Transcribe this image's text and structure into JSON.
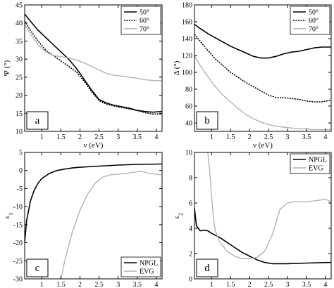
{
  "chart_data": [
    {
      "type": "line",
      "panel_label": "a",
      "xlabel": "ν (eV)",
      "ylabel": "Ψ (°)",
      "xlim": [
        0.55,
        4.15
      ],
      "ylim": [
        10,
        45
      ],
      "xticks": [
        1,
        1.5,
        2,
        2.5,
        3,
        3.5,
        4
      ],
      "xtick_labels": [
        "1",
        "1.5",
        "2",
        "2.5",
        "3",
        "3.5",
        "4"
      ],
      "yticks": [
        10,
        15,
        20,
        25,
        30,
        35,
        40,
        45
      ],
      "ytick_labels": [
        "10",
        "15",
        "20",
        "25",
        "30",
        "35",
        "40",
        "45"
      ],
      "grid": false,
      "legend_position": "top-right",
      "series": [
        {
          "name": "50°",
          "color": "#000000",
          "dash": "solid",
          "x": [
            0.55,
            0.7,
            0.9,
            1.1,
            1.3,
            1.5,
            1.7,
            1.9,
            2.1,
            2.3,
            2.5,
            2.7,
            2.9,
            3.1,
            3.3,
            3.5,
            3.7,
            3.9,
            4.15
          ],
          "y": [
            42.5,
            40.5,
            38.0,
            36.0,
            34.0,
            32.0,
            30.0,
            27.5,
            24.5,
            21.5,
            18.8,
            17.8,
            17.2,
            16.8,
            16.4,
            15.8,
            15.5,
            15.3,
            15.5
          ]
        },
        {
          "name": "60°",
          "color": "#000000",
          "dash": "dotted",
          "x": [
            0.55,
            0.7,
            0.9,
            1.1,
            1.3,
            1.5,
            1.7,
            1.9,
            2.1,
            2.3,
            2.5,
            2.7,
            2.9,
            3.1,
            3.3,
            3.5,
            3.7,
            3.9,
            4.15
          ],
          "y": [
            40.5,
            38.0,
            35.0,
            32.5,
            31.0,
            29.5,
            28.0,
            26.5,
            24.0,
            21.0,
            18.5,
            17.5,
            17.0,
            16.6,
            16.2,
            15.8,
            15.2,
            14.8,
            14.8
          ]
        },
        {
          "name": "70°",
          "color": "#b3b3b3",
          "dash": "solid",
          "x": [
            0.55,
            0.7,
            0.9,
            1.1,
            1.3,
            1.5,
            1.7,
            1.9,
            2.1,
            2.3,
            2.5,
            2.7,
            2.9,
            3.1,
            3.3,
            3.5,
            3.7,
            3.9,
            4.15
          ],
          "y": [
            39.5,
            37.0,
            34.0,
            32.0,
            31.0,
            30.7,
            30.3,
            29.8,
            29.0,
            28.0,
            27.0,
            26.0,
            25.5,
            25.3,
            25.0,
            24.7,
            24.3,
            24.1,
            24.0
          ]
        }
      ]
    },
    {
      "type": "line",
      "panel_label": "b",
      "xlabel": "ν (eV)",
      "ylabel": "Δ (°)",
      "xlim": [
        0.55,
        4.15
      ],
      "ylim": [
        30,
        180
      ],
      "xticks": [
        1,
        1.5,
        2,
        2.5,
        3,
        3.5,
        4
      ],
      "xtick_labels": [
        "1",
        "1.5",
        "2",
        "2.5",
        "3",
        "3.5",
        "4"
      ],
      "yticks": [
        40,
        60,
        80,
        100,
        120,
        140,
        160,
        180
      ],
      "ytick_labels": [
        "40",
        "60",
        "80",
        "100",
        "120",
        "140",
        "160",
        "180"
      ],
      "grid": false,
      "legend_position": "top-right",
      "series": [
        {
          "name": "50°",
          "color": "#000000",
          "dash": "solid",
          "x": [
            0.55,
            0.7,
            0.9,
            1.1,
            1.3,
            1.5,
            1.7,
            1.9,
            2.1,
            2.3,
            2.5,
            2.7,
            2.9,
            3.1,
            3.3,
            3.5,
            3.7,
            3.9,
            4.15
          ],
          "y": [
            157,
            152,
            146,
            141,
            136,
            131,
            127,
            123,
            119,
            117,
            117,
            119,
            122,
            124,
            125,
            127,
            129,
            130,
            130
          ]
        },
        {
          "name": "60°",
          "color": "#000000",
          "dash": "dotted",
          "x": [
            0.55,
            0.7,
            0.9,
            1.1,
            1.3,
            1.5,
            1.7,
            1.9,
            2.1,
            2.3,
            2.5,
            2.7,
            2.9,
            3.1,
            3.3,
            3.5,
            3.7,
            3.9,
            4.15
          ],
          "y": [
            145,
            137,
            126,
            116,
            108,
            100,
            94,
            88,
            83,
            78,
            73,
            70,
            70,
            69,
            68,
            66,
            65,
            65,
            67
          ]
        },
        {
          "name": "70°",
          "color": "#b3b3b3",
          "dash": "solid",
          "x": [
            0.55,
            0.7,
            0.9,
            1.1,
            1.3,
            1.5,
            1.7,
            1.9,
            2.1,
            2.3,
            2.5,
            2.7,
            2.9,
            3.1,
            3.3,
            3.5,
            3.7,
            3.9,
            4.15
          ],
          "y": [
            120,
            108,
            95,
            83,
            73,
            65,
            57,
            50,
            45,
            41,
            38,
            36,
            35,
            34,
            33,
            33,
            32,
            32,
            32
          ]
        }
      ]
    },
    {
      "type": "line",
      "panel_label": "c",
      "xlabel": "",
      "ylabel": "ε1",
      "xlim": [
        0.55,
        4.15
      ],
      "ylim": [
        -30,
        5
      ],
      "xticks": [
        1,
        1.5,
        2,
        2.5,
        3,
        3.5,
        4
      ],
      "xtick_labels": [
        "1",
        "1.5",
        "2",
        "2.5",
        "3",
        "3.5",
        "4"
      ],
      "yticks": [
        -30,
        -25,
        -20,
        -15,
        -10,
        -5,
        0,
        5
      ],
      "ytick_labels": [
        "-30",
        "-25",
        "-20",
        "-15",
        "-10",
        "-5",
        "0",
        "5"
      ],
      "grid": false,
      "legend_position": "bottom-right",
      "series": [
        {
          "name": "NPGL",
          "color": "#000000",
          "dash": "solid",
          "x": [
            0.55,
            0.6,
            0.7,
            0.8,
            0.9,
            1.0,
            1.2,
            1.4,
            1.6,
            1.8,
            2.0,
            2.5,
            3.0,
            3.5,
            4.15
          ],
          "y": [
            -20.0,
            -14.0,
            -8.5,
            -5.5,
            -3.5,
            -2.2,
            -0.8,
            0.0,
            0.4,
            0.7,
            0.9,
            1.2,
            1.5,
            1.7,
            1.8
          ]
        },
        {
          "name": "EVG",
          "color": "#b3b3b3",
          "dash": "solid",
          "x": [
            1.5,
            1.6,
            1.8,
            2.0,
            2.2,
            2.4,
            2.6,
            2.8,
            3.0,
            3.2,
            3.4,
            3.6,
            3.8,
            4.15
          ],
          "y": [
            -30.0,
            -25.0,
            -17.0,
            -11.0,
            -6.5,
            -3.5,
            -1.8,
            -1.2,
            -1.0,
            -0.8,
            -0.5,
            -0.2,
            -0.8,
            -1.2
          ]
        }
      ]
    },
    {
      "type": "line",
      "panel_label": "d",
      "xlabel": "",
      "ylabel": "ε2",
      "xlim": [
        0.55,
        4.15
      ],
      "ylim": [
        0,
        10
      ],
      "xticks": [
        1,
        1.5,
        2,
        2.5,
        3,
        3.5,
        4
      ],
      "xtick_labels": [
        "1",
        "1.5",
        "2",
        "2.5",
        "3",
        "3.5",
        "4"
      ],
      "yticks": [
        0,
        2,
        4,
        6,
        8,
        10
      ],
      "ytick_labels": [
        "0",
        "2",
        "4",
        "6",
        "8",
        "10"
      ],
      "grid": false,
      "legend_position": "top-right",
      "series": [
        {
          "name": "NPGL",
          "color": "#000000",
          "dash": "solid",
          "x": [
            0.55,
            0.6,
            0.7,
            0.8,
            0.9,
            1.0,
            1.2,
            1.4,
            1.6,
            1.8,
            2.0,
            2.2,
            2.4,
            2.6,
            2.8,
            3.0,
            3.5,
            4.15
          ],
          "y": [
            5.6,
            4.2,
            3.8,
            3.85,
            3.8,
            3.6,
            3.3,
            2.9,
            2.5,
            2.1,
            1.8,
            1.5,
            1.3,
            1.2,
            1.2,
            1.2,
            1.25,
            1.3
          ]
        },
        {
          "name": "EVG",
          "color": "#b3b3b3",
          "dash": "solid",
          "x": [
            0.9,
            0.95,
            1.0,
            1.05,
            1.1,
            1.2,
            1.4,
            1.6,
            1.8,
            2.0,
            2.2,
            2.4,
            2.6,
            2.8,
            3.0,
            3.2,
            3.5,
            3.8,
            4.0,
            4.15
          ],
          "y": [
            10.0,
            8.5,
            6.5,
            4.8,
            3.8,
            3.0,
            2.2,
            1.8,
            1.6,
            1.6,
            1.7,
            2.2,
            3.5,
            5.5,
            6.0,
            6.1,
            6.1,
            6.2,
            6.3,
            6.1
          ]
        }
      ]
    }
  ]
}
